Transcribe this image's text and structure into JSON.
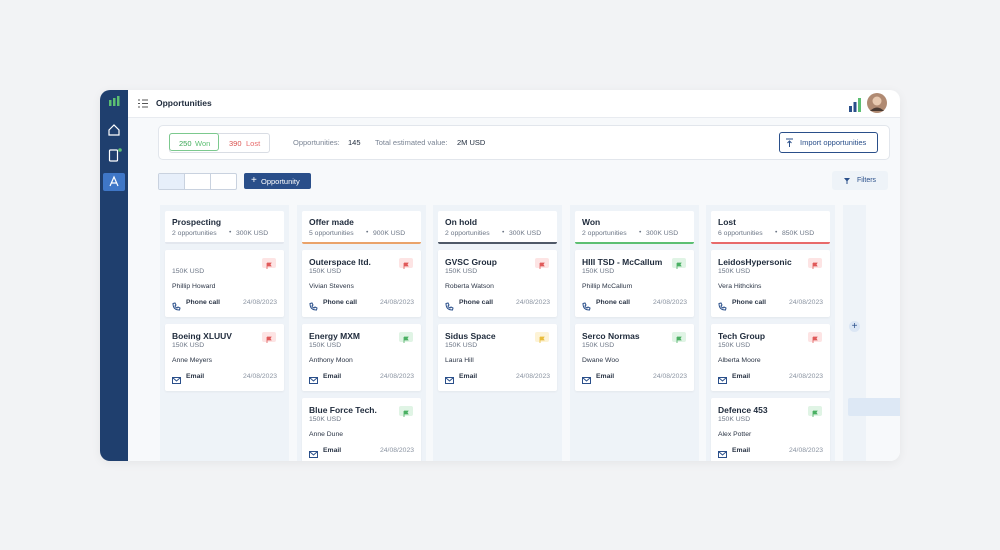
{
  "header": {
    "title": "Opportunities"
  },
  "stats": {
    "won_count": "250",
    "won_label": "Won",
    "lost_count": "390",
    "lost_label": "Lost",
    "opportunities_label": "Opportunities:",
    "opportunities_value": "145",
    "total_label": "Total estimated value:",
    "total_value": "2M USD",
    "import_button": "Import opportunities"
  },
  "toolbar": {
    "new_button": "Opportunity",
    "filters": "Filters"
  },
  "columns": [
    {
      "name": "Prospecting",
      "count": "2 opportunities",
      "value": "300K USD",
      "accent": "#e3e7ee",
      "cards": [
        {
          "amount": "150K USD",
          "contact": "Phillip Howard",
          "activity": "Phone call",
          "date": "24/08/2023",
          "flag": "red"
        },
        {
          "name": "Boeing XLUUV",
          "amount": "150K USD",
          "contact": "Anne Meyers",
          "activity": "Email",
          "date": "24/08/2023",
          "flag": "red"
        }
      ]
    },
    {
      "name": "Offer made",
      "count": "5 opportunities",
      "value": "900K USD",
      "accent": "#eaa36a",
      "cards": [
        {
          "name": "Outerspace ltd.",
          "amount": "150K USD",
          "contact": "Vivian Stevens",
          "activity": "Phone call",
          "date": "24/08/2023",
          "flag": "red"
        },
        {
          "name": "Energy MXM",
          "amount": "150K USD",
          "contact": "Anthony Moon",
          "activity": "Email",
          "date": "24/08/2023",
          "flag": "green"
        },
        {
          "name": "Blue Force Tech.",
          "amount": "150K USD",
          "contact": "Anne Dune",
          "activity": "Email",
          "date": "24/08/2023",
          "flag": "green"
        }
      ]
    },
    {
      "name": "On hold",
      "count": "2 opportunities",
      "value": "300K USD",
      "accent": "#4f5968",
      "cards": [
        {
          "name": "GVSC Group",
          "amount": "150K USD",
          "contact": "Roberta Watson",
          "activity": "Phone call",
          "date": "24/08/2023",
          "flag": "red"
        },
        {
          "name": "Sidus Space",
          "amount": "150K USD",
          "contact": "Laura Hill",
          "activity": "Email",
          "date": "24/08/2023",
          "flag": "yellow"
        }
      ]
    },
    {
      "name": "Won",
      "count": "2 opportunities",
      "value": "300K USD",
      "accent": "#5cbf72",
      "cards": [
        {
          "name": "HIII TSD - McCallum",
          "amount": "150K USD",
          "contact": "Phillip McCallum",
          "activity": "Phone call",
          "date": "24/08/2023",
          "flag": "green"
        },
        {
          "name": "Serco Normas",
          "amount": "150K USD",
          "contact": "Dwane Woo",
          "activity": "Email",
          "date": "24/08/2023",
          "flag": "green"
        }
      ]
    },
    {
      "name": "Lost",
      "count": "6 opportunities",
      "value": "850K USD",
      "accent": "#e86a6a",
      "cards": [
        {
          "name": "LeidosHypersonic",
          "amount": "150K USD",
          "contact": "Vera Hithckins",
          "activity": "Phone call",
          "date": "24/08/2023",
          "flag": "red"
        },
        {
          "name": "Tech Group",
          "amount": "150K USD",
          "contact": "Alberta Moore",
          "activity": "Email",
          "date": "24/08/2023",
          "flag": "red"
        },
        {
          "name": "Defence 453",
          "amount": "150K USD",
          "contact": "Alex Potter",
          "activity": "Email",
          "date": "24/08/2023",
          "flag": "green"
        }
      ]
    }
  ]
}
